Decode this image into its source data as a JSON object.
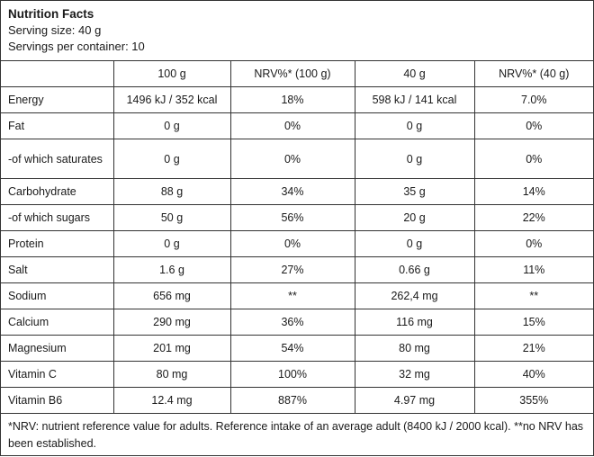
{
  "header": {
    "title": "Nutrition Facts",
    "serving_size": "Serving size: 40 g",
    "servings_per_container": "Servings per container: 10"
  },
  "table": {
    "columns": [
      "",
      "100 g",
      "NRV%* (100 g)",
      "40 g",
      "NRV%* (40 g)"
    ],
    "rows": [
      [
        "Energy",
        "1496 kJ / 352 kcal",
        "18%",
        "598 kJ / 141 kcal",
        "7.0%"
      ],
      [
        "Fat",
        "0 g",
        "0%",
        "0 g",
        "0%"
      ],
      [
        "-of which saturates",
        "0 g",
        "0%",
        "0 g",
        "0%"
      ],
      [
        "Carbohydrate",
        "88 g",
        "34%",
        "35 g",
        "14%"
      ],
      [
        "-of which sugars",
        "50 g",
        "56%",
        "20 g",
        "22%"
      ],
      [
        "Protein",
        "0 g",
        "0%",
        "0 g",
        "0%"
      ],
      [
        "Salt",
        "1.6 g",
        "27%",
        "0.66 g",
        "11%"
      ],
      [
        "Sodium",
        "656 mg",
        "**",
        "262,4 mg",
        "**"
      ],
      [
        "Calcium",
        "290 mg",
        "36%",
        "116 mg",
        "15%"
      ],
      [
        "Magnesium",
        "201 mg",
        "54%",
        "80 mg",
        "21%"
      ],
      [
        "Vitamin C",
        "80 mg",
        "100%",
        "32 mg",
        "40%"
      ],
      [
        "Vitamin B6",
        "12.4 mg",
        "887%",
        "4.97 mg",
        "355%"
      ]
    ]
  },
  "footnote": "*NRV: nutrient reference value for adults. Reference intake of an average adult (8400 kJ / 2000 kcal). **no NRV has been established."
}
